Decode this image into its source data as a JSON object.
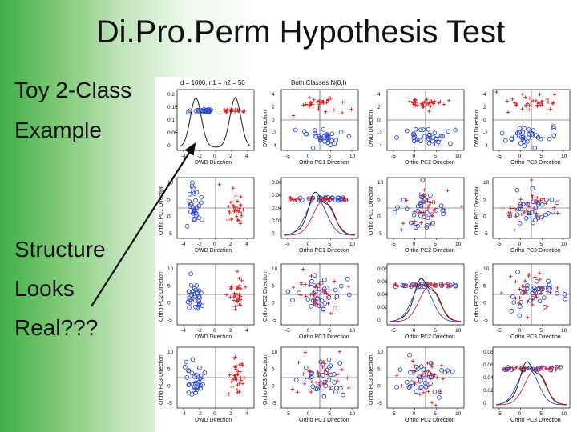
{
  "slide": {
    "title": "Di.Pro.Perm Hypothesis Test",
    "bullets": [
      "Toy 2-Class",
      "Example",
      "Structure",
      "Looks",
      "Real???"
    ]
  },
  "figure": {
    "header_left": "d = 1000, n1 = n2 = 50",
    "header_center": "Both Classes N(0,I)",
    "row_labels": [
      "",
      "Ortho PC1 Direction",
      "Ortho PC2 Direction",
      "Ortho PC3 Direction"
    ],
    "col_labels": [
      "DWD Direction",
      "Ortho PC1 Direction",
      "Ortho PC2 Direction",
      "Ortho PC3 Direction"
    ],
    "top_row_ylabels": [
      "",
      "DWD Direction",
      "DWD Direction",
      "DWD Direction"
    ],
    "x_ticks_dwd": [
      "-4",
      "-2",
      "0",
      "2",
      "4"
    ],
    "x_ticks_pc": [
      "-5",
      "0",
      "5",
      "10"
    ],
    "y_ticks_density_dwd": [
      "0.2",
      "0.15",
      "0.1",
      "0.05",
      "0"
    ],
    "y_ticks_density_pc": [
      "0.08",
      "0.06",
      "0.04",
      "0.02",
      "0"
    ],
    "y_ticks_pc": [
      "10",
      "5",
      "0",
      "-5"
    ],
    "y_ticks_dwd": [
      "4",
      "2",
      "0",
      "-2",
      "-4"
    ],
    "colors": {
      "class1": "#3048c8",
      "class2": "#d82020",
      "curve": "#202020",
      "text": "#111111"
    }
  }
}
